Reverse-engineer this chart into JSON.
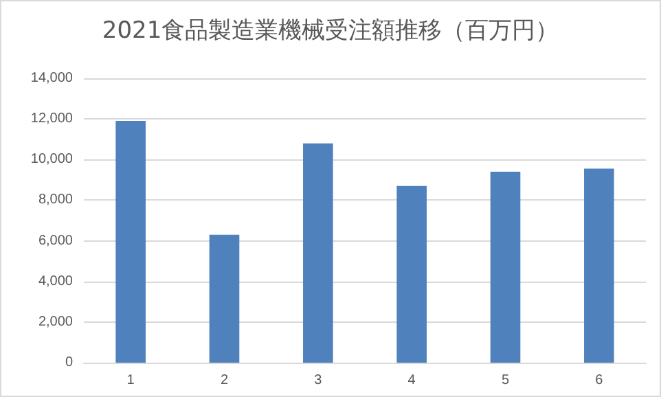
{
  "chart_data": {
    "type": "bar",
    "title": "2021食品製造業機械受注額推移（百万円）",
    "categories": [
      "1",
      "2",
      "3",
      "4",
      "5",
      "6"
    ],
    "values": [
      11900,
      6300,
      10800,
      8700,
      9400,
      9550
    ],
    "color": "#4f81bd",
    "ylim": [
      0,
      14000
    ],
    "yticks": [
      0,
      {
        "value": 2000,
        "label": "2,000"
      },
      {
        "value": 4000,
        "label": "4,000"
      },
      {
        "value": 6000,
        "label": "6,000"
      },
      {
        "value": 8000,
        "label": "8,000"
      },
      {
        "value": 10000,
        "label": "10,000"
      },
      {
        "value": 12000,
        "label": "12,000"
      },
      {
        "value": 14000,
        "label": "14,000"
      }
    ],
    "grid": "y"
  }
}
